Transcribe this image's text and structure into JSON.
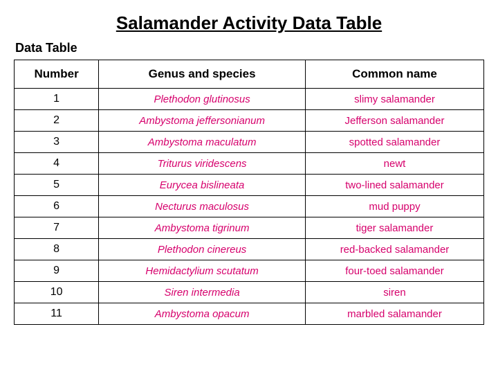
{
  "title": "Salamander Activity Data Table",
  "subtitle": "Data Table",
  "columns": [
    "Number",
    "Genus and species",
    "Common name"
  ],
  "data_color": "#d6006c",
  "rows": [
    {
      "num": "1",
      "genus": "Plethodon glutinosus",
      "common": "slimy salamander"
    },
    {
      "num": "2",
      "genus": "Ambystoma jeffersonianum",
      "common": "Jefferson salamander"
    },
    {
      "num": "3",
      "genus": "Ambystoma maculatum",
      "common": "spotted salamander"
    },
    {
      "num": "4",
      "genus": "Triturus viridescens",
      "common": "newt"
    },
    {
      "num": "5",
      "genus": "Eurycea bislineata",
      "common": "two-lined salamander"
    },
    {
      "num": "6",
      "genus": "Necturus maculosus",
      "common": "mud puppy"
    },
    {
      "num": "7",
      "genus": "Ambystoma tigrinum",
      "common": "tiger salamander"
    },
    {
      "num": "8",
      "genus": "Plethodon cinereus",
      "common": "red-backed salamander"
    },
    {
      "num": "9",
      "genus": "Hemidactylium scutatum",
      "common": "four-toed salamander"
    },
    {
      "num": "10",
      "genus": "Siren intermedia",
      "common": "siren"
    },
    {
      "num": "11",
      "genus": "Ambystoma opacum",
      "common": "marbled salamander"
    }
  ]
}
